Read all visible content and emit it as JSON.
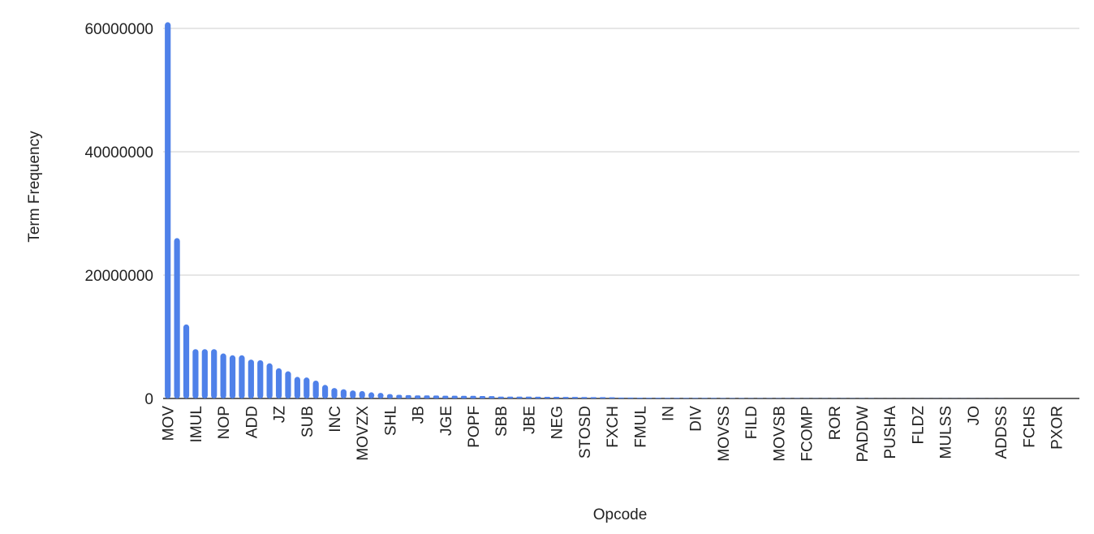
{
  "chart_data": {
    "type": "bar",
    "x_label": "Opcode",
    "y_label": "Term Frequency",
    "categories": [
      "MOV",
      null,
      null,
      "IMUL",
      null,
      null,
      "NOP",
      null,
      null,
      "ADD",
      null,
      null,
      "JZ",
      null,
      null,
      "SUB",
      null,
      null,
      "INC",
      null,
      null,
      "MOVZX",
      null,
      null,
      "SHL",
      null,
      null,
      "JB",
      null,
      null,
      "JGE",
      null,
      null,
      "POPF",
      null,
      null,
      "SBB",
      null,
      null,
      "JBE",
      null,
      null,
      "NEG",
      null,
      null,
      "STOSD",
      null,
      null,
      "FXCH",
      null,
      null,
      "FMUL",
      null,
      null,
      "IN",
      null,
      null,
      "DIV",
      null,
      null,
      "MOVSS",
      null,
      null,
      "FILD",
      null,
      null,
      "MOVSB",
      null,
      null,
      "FCOMP",
      null,
      null,
      "ROR",
      null,
      null,
      "PADDW",
      null,
      null,
      "PUSHA",
      null,
      null,
      "FLDZ",
      null,
      null,
      "MULSS",
      null,
      null,
      "JO",
      null,
      null,
      "ADDSS",
      null,
      null,
      "FCHS",
      null,
      null,
      "PXOR",
      null,
      null
    ],
    "values": [
      61000000,
      26000000,
      12000000,
      8000000,
      8000000,
      8000000,
      7300000,
      7000000,
      7000000,
      6300000,
      6200000,
      5700000,
      4900000,
      4400000,
      3500000,
      3400000,
      2900000,
      2200000,
      1700000,
      1500000,
      1300000,
      1200000,
      1000000,
      900000,
      700000,
      600000,
      550000,
      500000,
      500000,
      480000,
      450000,
      450000,
      430000,
      420000,
      400000,
      380000,
      300000,
      300000,
      300000,
      290000,
      280000,
      270000,
      260000,
      250000,
      240000,
      230000,
      220000,
      210000,
      200000,
      150000,
      140000,
      130000,
      120000,
      110000,
      100000,
      95000,
      90000,
      85000,
      80000,
      75000,
      70000,
      65000,
      60000,
      55000,
      50000,
      48000,
      46000,
      44000,
      42000,
      40000,
      38000,
      36000,
      34000,
      32000,
      30000,
      28000,
      26000,
      24000,
      22000,
      20000,
      19000,
      18000,
      17000,
      16000,
      15000,
      14000,
      13000,
      12000,
      11000,
      10000,
      9000,
      8000,
      7000,
      6000,
      5000,
      4000,
      3000,
      2000,
      1000
    ],
    "color": "#4f81e9",
    "ylim": [
      0,
      60000000
    ],
    "yticks": [
      0,
      20000000,
      40000000,
      60000000
    ],
    "grid": true
  }
}
